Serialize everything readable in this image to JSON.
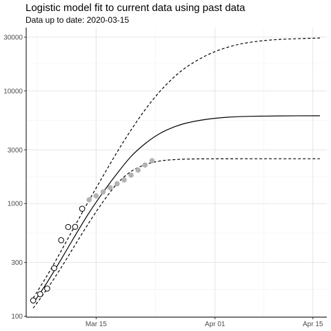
{
  "chart_data": {
    "type": "line",
    "title": "Logistic model fit to current data using past data",
    "subtitle": "Data up to date: 2020-03-15",
    "xlabel": "",
    "ylabel": "",
    "x_scale": "date",
    "y_scale": "log10",
    "xlim": [
      "2020-03-05",
      "2020-04-17"
    ],
    "ylim": [
      98,
      36500
    ],
    "x_ticks": [
      {
        "date": "2020-03-15",
        "label": "Mar 15"
      },
      {
        "date": "2020-04-01",
        "label": "Apr 01"
      },
      {
        "date": "2020-04-15",
        "label": "Apr 15"
      }
    ],
    "y_ticks": [
      {
        "value": 100,
        "label": "100"
      },
      {
        "value": 300,
        "label": "300"
      },
      {
        "value": 1000,
        "label": "1000"
      },
      {
        "value": 3000,
        "label": "3000"
      },
      {
        "value": 10000,
        "label": "10000"
      },
      {
        "value": 30000,
        "label": "30000"
      }
    ],
    "grid": true,
    "legend": "none",
    "series": [
      {
        "style": "solid",
        "color": "#000000",
        "points": [
          [
            "2020-03-06",
            130
          ],
          [
            "2020-03-08",
            200
          ],
          [
            "2020-03-10",
            320
          ],
          [
            "2020-03-12",
            520
          ],
          [
            "2020-03-14",
            830
          ],
          [
            "2020-03-16",
            1260
          ],
          [
            "2020-03-18",
            1850
          ],
          [
            "2020-03-20",
            2620
          ],
          [
            "2020-03-22",
            3400
          ],
          [
            "2020-03-24",
            4150
          ],
          [
            "2020-03-26",
            4750
          ],
          [
            "2020-03-28",
            5200
          ],
          [
            "2020-03-31",
            5620
          ],
          [
            "2020-04-03",
            5850
          ],
          [
            "2020-04-06",
            5950
          ],
          [
            "2020-04-10",
            6000
          ],
          [
            "2020-04-16",
            6020
          ]
        ]
      },
      {
        "style": "dashed",
        "color": "#000000",
        "points": [
          [
            "2020-03-06",
            145
          ],
          [
            "2020-03-08",
            230
          ],
          [
            "2020-03-10",
            380
          ],
          [
            "2020-03-12",
            640
          ],
          [
            "2020-03-14",
            1070
          ],
          [
            "2020-03-16",
            1760
          ],
          [
            "2020-03-18",
            2860
          ],
          [
            "2020-03-20",
            4500
          ],
          [
            "2020-03-22",
            6800
          ],
          [
            "2020-03-24",
            9700
          ],
          [
            "2020-03-26",
            13000
          ],
          [
            "2020-03-28",
            16400
          ],
          [
            "2020-03-31",
            21000
          ],
          [
            "2020-04-03",
            24600
          ],
          [
            "2020-04-06",
            27000
          ],
          [
            "2020-04-10",
            28600
          ],
          [
            "2020-04-16",
            29500
          ]
        ]
      },
      {
        "style": "dashed",
        "color": "#000000",
        "points": [
          [
            "2020-03-06",
            118
          ],
          [
            "2020-03-08",
            175
          ],
          [
            "2020-03-10",
            270
          ],
          [
            "2020-03-12",
            430
          ],
          [
            "2020-03-14",
            680
          ],
          [
            "2020-03-16",
            1040
          ],
          [
            "2020-03-18",
            1500
          ],
          [
            "2020-03-20",
            1930
          ],
          [
            "2020-03-22",
            2210
          ],
          [
            "2020-03-24",
            2380
          ],
          [
            "2020-03-26",
            2450
          ],
          [
            "2020-03-29",
            2490
          ],
          [
            "2020-04-05",
            2500
          ],
          [
            "2020-04-16",
            2500
          ]
        ]
      }
    ],
    "observed_fit": {
      "marker": "open-circle",
      "color": "#000000",
      "points": [
        [
          "2020-03-06",
          138
        ],
        [
          "2020-03-07",
          157
        ],
        [
          "2020-03-08",
          176
        ],
        [
          "2020-03-09",
          267
        ],
        [
          "2020-03-10",
          473
        ],
        [
          "2020-03-11",
          620
        ],
        [
          "2020-03-12",
          622
        ],
        [
          "2020-03-13",
          900
        ]
      ]
    },
    "observed_new": {
      "marker": "filled-circle",
      "color": "#b3b3b3",
      "points": [
        [
          "2020-03-14",
          1080
        ],
        [
          "2020-03-15",
          1170
        ],
        [
          "2020-03-16",
          1270
        ],
        [
          "2020-03-17",
          1380
        ],
        [
          "2020-03-18",
          1500
        ],
        [
          "2020-03-19",
          1620
        ],
        [
          "2020-03-20",
          1790
        ],
        [
          "2020-03-21",
          1980
        ],
        [
          "2020-03-22",
          2200
        ],
        [
          "2020-03-23",
          2400
        ]
      ]
    }
  }
}
